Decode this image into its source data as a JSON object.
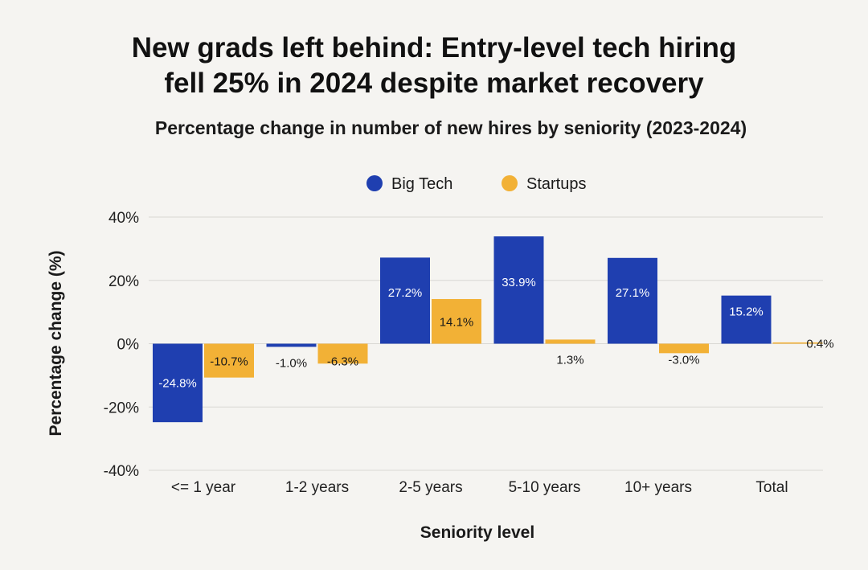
{
  "chart_data": {
    "type": "bar",
    "title_lines": [
      "New grads left behind: Entry-level tech hiring",
      "fell 25% in 2024 despite market recovery"
    ],
    "subtitle": "Percentage change in number of new hires by seniority (2023-2024)",
    "xlabel": "Seniority level",
    "ylabel": "Percentage change (%)",
    "ylim": [
      -40,
      40
    ],
    "yticks": [
      40,
      20,
      0,
      -20,
      -40
    ],
    "ytick_labels": [
      "40%",
      "20%",
      "0%",
      "-20%",
      "-40%"
    ],
    "categories": [
      "<= 1 year",
      "1-2 years",
      "2-5 years",
      "5-10 years",
      "10+ years",
      "Total"
    ],
    "series": [
      {
        "name": "Big Tech",
        "color": "#1f3fb0",
        "values": [
          -24.8,
          -1.0,
          27.2,
          33.9,
          27.1,
          15.2
        ],
        "labels": [
          "-24.8%",
          "-1.0%",
          "27.2%",
          "33.9%",
          "27.1%",
          "15.2%"
        ]
      },
      {
        "name": "Startups",
        "color": "#f2b136",
        "values": [
          -10.7,
          -6.3,
          14.1,
          1.3,
          -3.0,
          0.4
        ],
        "labels": [
          "-10.7%",
          "-6.3%",
          "14.1%",
          "1.3%",
          "-3.0%",
          "0.4%"
        ]
      }
    ],
    "legend_position": "top-center",
    "grid": true
  }
}
